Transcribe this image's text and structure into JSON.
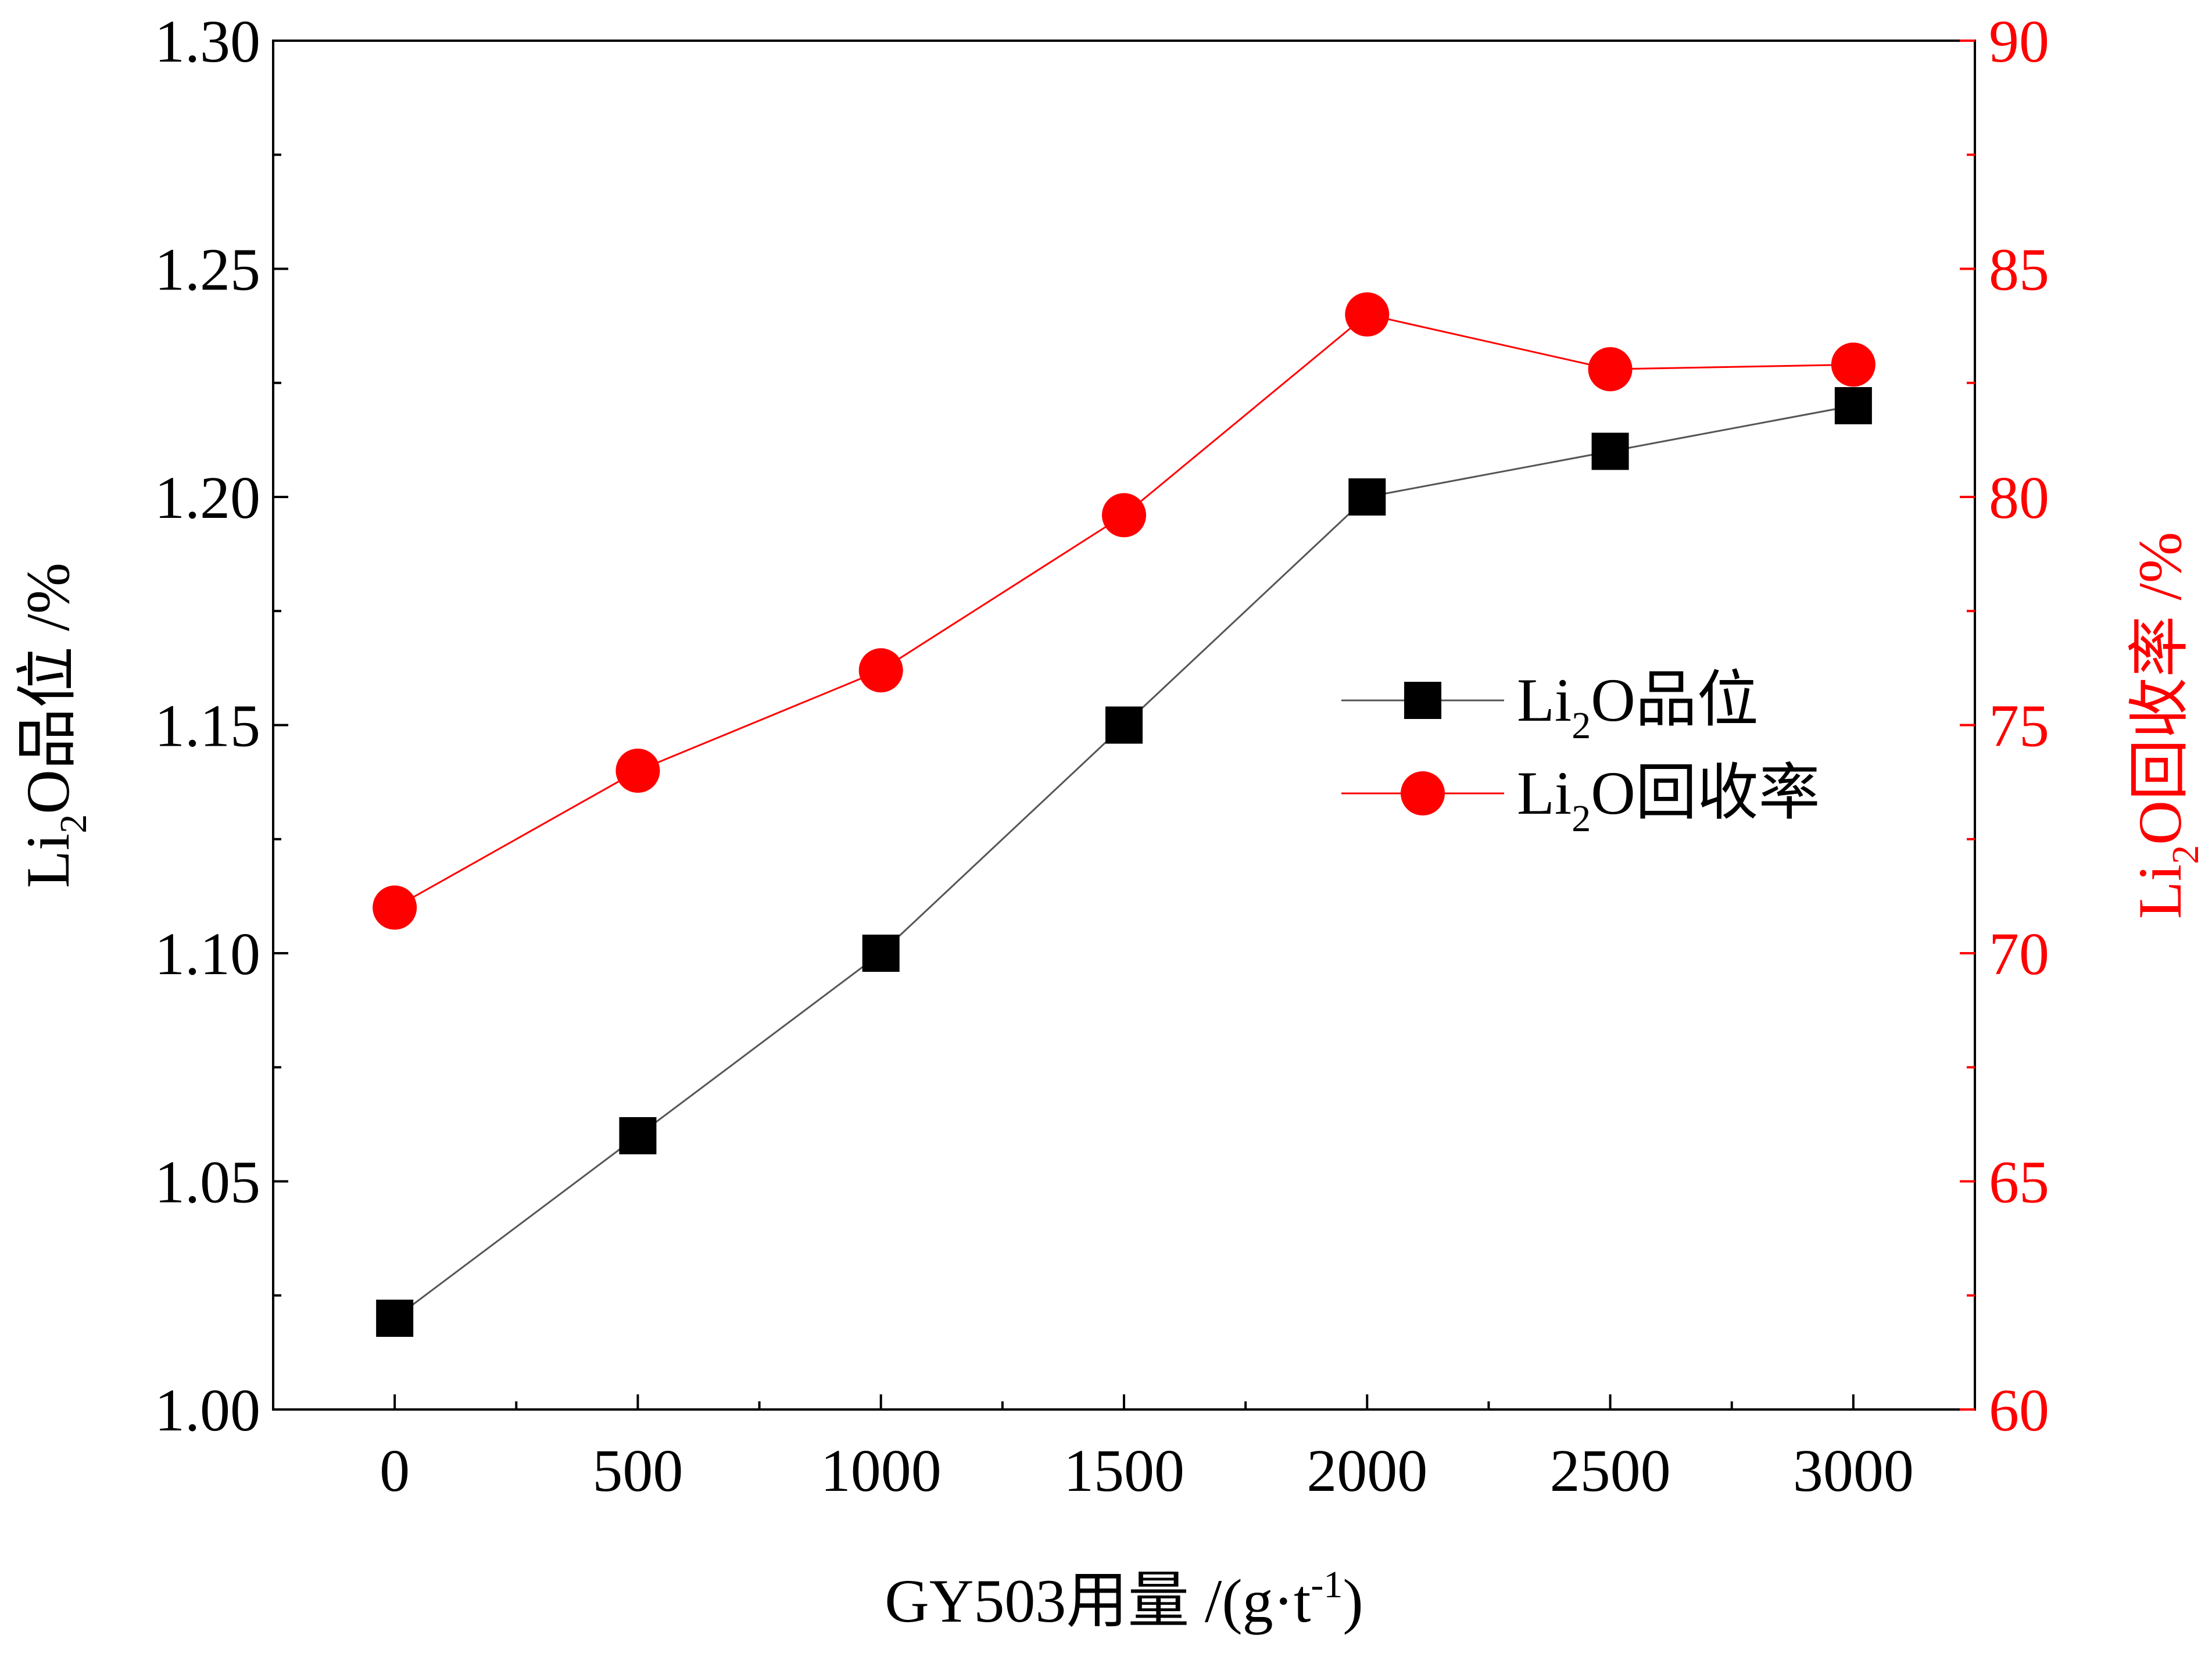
{
  "chart_data": {
    "type": "line",
    "x": [
      0,
      500,
      1000,
      1500,
      2000,
      2500,
      3000
    ],
    "xticks": [
      "0",
      "500",
      "1000",
      "1500",
      "2000",
      "2500",
      "3000"
    ],
    "xlim": [
      -250,
      3250
    ],
    "xlabel": {
      "main": "GY503用量 /(g·t",
      "sup": "-1",
      "tail": ")"
    },
    "y_left": {
      "label": {
        "pre": "Li",
        "sub": "2",
        "post": "O品位 /%"
      },
      "lim": [
        1.0,
        1.3
      ],
      "ticks": [
        "1.00",
        "1.05",
        "1.10",
        "1.15",
        "1.20",
        "1.25",
        "1.30"
      ],
      "color": "#000000"
    },
    "y_right": {
      "label": {
        "pre": "Li",
        "sub": "2",
        "post": "O回收率 /%"
      },
      "lim": [
        60,
        90
      ],
      "ticks": [
        "60",
        "65",
        "70",
        "75",
        "80",
        "85",
        "90"
      ],
      "color": "#ff0000"
    },
    "series": [
      {
        "name": {
          "pre": "Li",
          "sub": "2",
          "post": "O品位"
        },
        "axis": "left",
        "marker": "square",
        "color": "#000000",
        "line_color": "#555555",
        "values": [
          1.02,
          1.06,
          1.1,
          1.15,
          1.2,
          1.21,
          1.22
        ]
      },
      {
        "name": {
          "pre": "Li",
          "sub": "2",
          "post": "O回收率"
        },
        "axis": "right",
        "marker": "circle",
        "color": "#ff0000",
        "line_color": "#ff0000",
        "values": [
          71.0,
          74.0,
          76.2,
          79.6,
          84.0,
          82.8,
          82.9
        ]
      }
    ],
    "legend": "center-right",
    "grid": false
  }
}
